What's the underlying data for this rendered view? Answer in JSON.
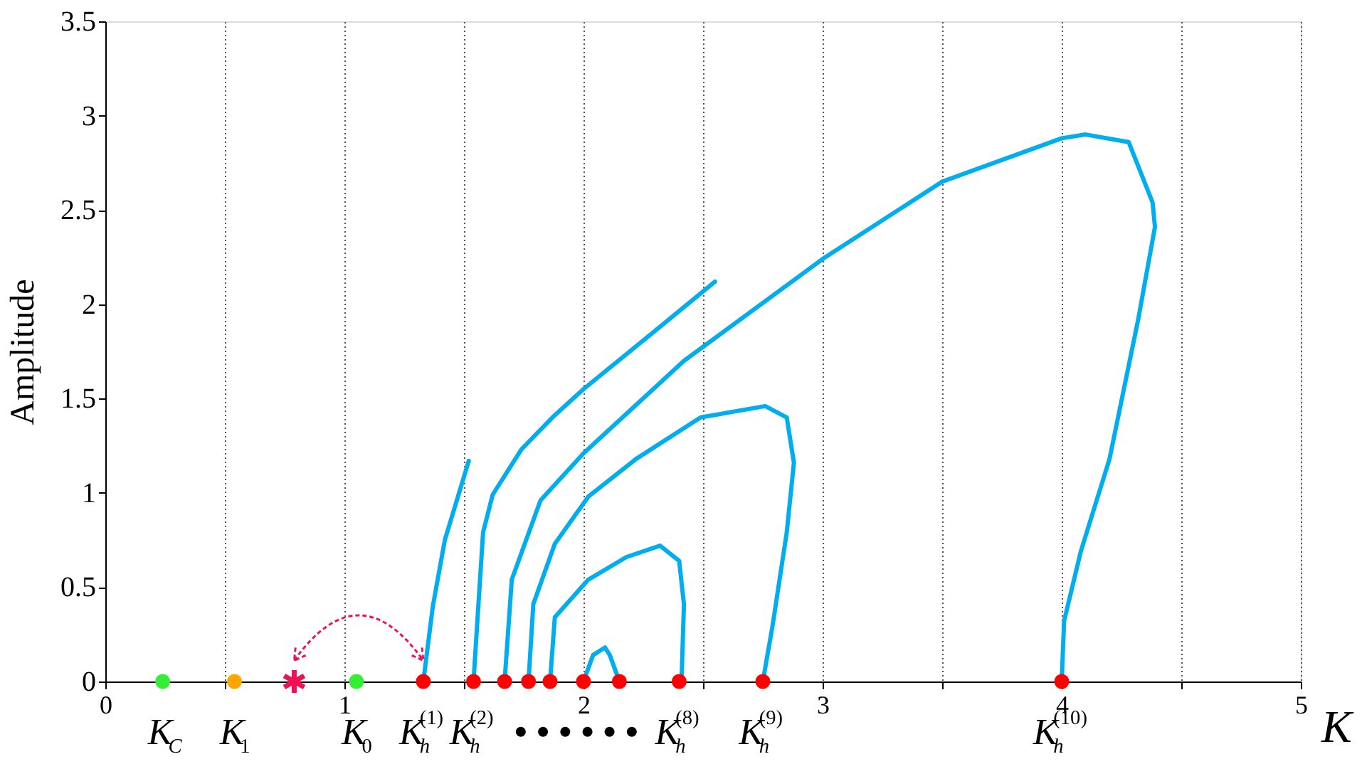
{
  "chart_data": {
    "type": "line",
    "xlabel": "K",
    "ylabel": "Amplitude",
    "xlim": [
      0,
      5
    ],
    "ylim": [
      0,
      3.5
    ],
    "xticks": [
      0,
      {
        "value": 0.5,
        "label": null
      },
      1,
      {
        "value": 1.5,
        "label": null
      },
      2,
      {
        "value": 2.5,
        "label": null
      },
      3,
      {
        "value": 3.5,
        "label": null
      },
      4,
      {
        "value": 4.5,
        "label": null
      },
      5
    ],
    "yticks": [
      0,
      0.5,
      1,
      1.5,
      2,
      2.5,
      3,
      3.5
    ],
    "grid": "x",
    "series": [
      {
        "color": "#00aeef",
        "x": [
          1.33,
          1.37,
          1.42,
          1.52
        ],
        "values": [
          0,
          0.4,
          0.75,
          1.17
        ]
      },
      {
        "color": "#00aeef",
        "x": [
          1.54,
          1.555,
          1.58,
          1.62,
          1.74,
          1.87,
          2.0,
          2.3,
          2.55
        ],
        "values": [
          0,
          0.3,
          0.79,
          0.99,
          1.23,
          1.4,
          1.55,
          1.86,
          2.12
        ]
      },
      {
        "color": "#00aeef",
        "x": [
          1.67,
          1.7,
          1.82,
          2.0,
          2.42,
          3.0,
          3.5,
          4.0,
          4.1,
          4.28,
          4.38,
          4.39,
          4.32,
          4.2,
          4.08,
          4.01,
          4.0
        ],
        "values": [
          0,
          0.54,
          0.96,
          1.21,
          1.7,
          2.24,
          2.65,
          2.88,
          2.9,
          2.86,
          2.54,
          2.41,
          1.92,
          1.18,
          0.69,
          0.32,
          0
        ]
      },
      {
        "color": "#00aeef",
        "x": [
          1.77,
          1.79,
          1.88,
          2.02,
          2.22,
          2.49,
          2.76,
          2.85,
          2.88,
          2.85,
          2.79,
          2.75
        ],
        "values": [
          0,
          0.41,
          0.73,
          0.98,
          1.18,
          1.4,
          1.46,
          1.4,
          1.16,
          0.79,
          0.29,
          0
        ]
      },
      {
        "color": "#00aeef",
        "x": [
          1.86,
          1.88,
          2.02,
          2.18,
          2.32,
          2.4,
          2.42,
          2.41
        ],
        "values": [
          0,
          0.34,
          0.54,
          0.66,
          0.72,
          0.64,
          0.41,
          0
        ]
      },
      {
        "color": "#00aeef",
        "x": [
          2.0,
          2.04,
          2.09,
          2.11,
          2.15
        ],
        "values": [
          0,
          0.14,
          0.18,
          0.14,
          0
        ]
      },
      {
        "type": "scatter",
        "marker": "circle",
        "color": "#33ee33",
        "x": [
          0.24,
          1.05
        ],
        "values": [
          0,
          0
        ]
      },
      {
        "type": "scatter",
        "marker": "circle",
        "color": "#ffa500",
        "x": [
          0.54
        ],
        "values": [
          0
        ]
      },
      {
        "type": "scatter",
        "marker": "cross",
        "color": "#ee1155",
        "x": [
          0.79
        ],
        "values": [
          0
        ]
      },
      {
        "type": "scatter",
        "marker": "circle",
        "color": "#ff0000",
        "x": [
          1.33,
          1.54,
          1.67,
          1.77,
          1.86,
          2.0,
          2.15,
          2.4,
          2.75,
          4.0
        ],
        "values": [
          0,
          0,
          0,
          0,
          0,
          0,
          0,
          0,
          0,
          0
        ]
      }
    ],
    "annotations": [
      {
        "text": "K$_{C}$",
        "x": 0.24,
        "y": 0
      },
      {
        "text": "K$_{1}$",
        "x": 0.54,
        "y": 0
      },
      {
        "text": "K$_{0}$",
        "x": 1.05,
        "y": 0
      },
      {
        "text": "K$_{h}$$^{(1)}$",
        "x": 1.33,
        "y": 0
      },
      {
        "text": "K$_{h}$$^{(2)}$",
        "x": 1.54,
        "y": 0
      },
      "• • • • • •",
      {
        "text": "K$_{h}$$^{(8)}$",
        "x": 2.4,
        "y": 0
      },
      {
        "text": "K$_{h}$$^{(9)}$",
        "x": 2.75,
        "y": 0
      },
      {
        "text": "K$_{h}$$^{(10)}$",
        "x": 4.0,
        "y": 0
      }
    ]
  }
}
